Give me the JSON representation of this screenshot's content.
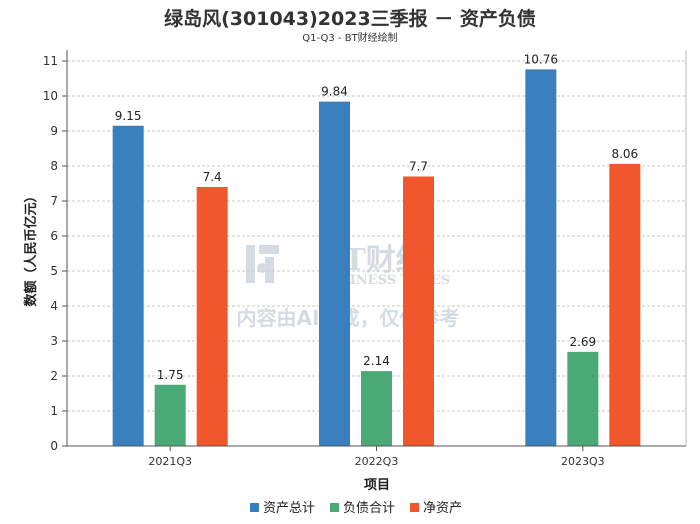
{
  "chart_data": {
    "type": "bar",
    "title": "绿岛风(301043)2023三季报 － 资产负债",
    "subtitle": "Q1-Q3 - BT财经绘制",
    "xlabel": "项目",
    "ylabel": "数额（人民币亿元）",
    "categories": [
      "2021Q3",
      "2022Q3",
      "2023Q3"
    ],
    "ylim": [
      0,
      11
    ],
    "yticks": [
      0,
      1,
      2,
      3,
      4,
      5,
      6,
      7,
      8,
      9,
      10,
      11
    ],
    "grid": true,
    "legend_position": "bottom",
    "series": [
      {
        "name": "资产总计",
        "values": [
          9.15,
          9.84,
          10.76
        ],
        "color": "#3a80bf"
      },
      {
        "name": "负债合计",
        "values": [
          1.75,
          2.14,
          2.69
        ],
        "color": "#49aa77"
      },
      {
        "name": "净资产",
        "values": [
          7.4,
          7.7,
          8.06
        ],
        "color": "#f0572c"
      }
    ]
  },
  "watermark": {
    "brand": "BT财经",
    "brand_en": "BUSINESS TIMES",
    "disclaimer": "内容由AI生成，仅供参考"
  }
}
